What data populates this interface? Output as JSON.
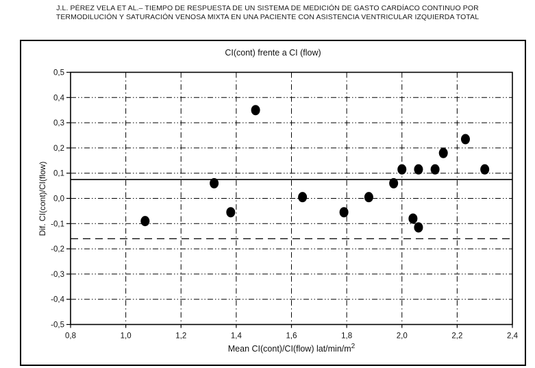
{
  "header": {
    "line1": "J.L. PÉREZ VELA ET AL.– TIEMPO DE RESPUESTA DE UN SISTEMA DE MEDICIÓN DE GASTO CARDÍACO CONTINUO POR",
    "line2": "TERMODILUCIÓN Y SATURACIÓN VENOSA MIXTA EN UNA PACIENTE CON ASISTENCIA VENTRICULAR IZQUIERDA TOTAL"
  },
  "chart_data": {
    "type": "scatter",
    "title": "CI(cont) frente a CI (flow)",
    "xlabel": "Mean CI(cont)/CI(flow)  lat/min/m",
    "xlabel_superscript": "2",
    "ylabel": "Dif. CI(cont)/CI(flow)",
    "xlim": [
      0.8,
      2.4
    ],
    "ylim": [
      -0.5,
      0.5
    ],
    "grid": {
      "style": "dash-dot",
      "x_step": 0.2,
      "y_step": 0.1
    },
    "legend": "none",
    "marker_color": "#000000",
    "x_ticks": [
      {
        "v": 0.8,
        "label": "0,8"
      },
      {
        "v": 1.0,
        "label": "1,0"
      },
      {
        "v": 1.2,
        "label": "1,2"
      },
      {
        "v": 1.4,
        "label": "1,4"
      },
      {
        "v": 1.6,
        "label": "1,6"
      },
      {
        "v": 1.8,
        "label": "1,8"
      },
      {
        "v": 2.0,
        "label": "2,0"
      },
      {
        "v": 2.2,
        "label": "2,2"
      },
      {
        "v": 2.4,
        "label": "2,4"
      }
    ],
    "y_ticks": [
      {
        "v": 0.5,
        "label": "0,5"
      },
      {
        "v": 0.4,
        "label": "0,4"
      },
      {
        "v": 0.3,
        "label": "0,3"
      },
      {
        "v": 0.2,
        "label": "0,2"
      },
      {
        "v": 0.1,
        "label": "0,1"
      },
      {
        "v": 0.0,
        "label": "0,0"
      },
      {
        "v": -0.1,
        "label": "-0,1"
      },
      {
        "v": -0.2,
        "label": "-0,2"
      },
      {
        "v": -0.3,
        "label": "-0,3"
      },
      {
        "v": -0.4,
        "label": "-0,4"
      },
      {
        "v": -0.5,
        "label": "-0,5"
      }
    ],
    "reference_lines": [
      {
        "name": "mean-bias-line",
        "value": 0.075,
        "style": "solid"
      },
      {
        "name": "lower-limit-line",
        "value": -0.16,
        "style": "dashed"
      }
    ],
    "points": [
      {
        "x": 1.07,
        "y": -0.09
      },
      {
        "x": 1.32,
        "y": 0.06
      },
      {
        "x": 1.38,
        "y": -0.055
      },
      {
        "x": 1.47,
        "y": 0.35
      },
      {
        "x": 1.64,
        "y": 0.005
      },
      {
        "x": 1.79,
        "y": -0.055
      },
      {
        "x": 1.88,
        "y": 0.005
      },
      {
        "x": 1.97,
        "y": 0.06
      },
      {
        "x": 2.0,
        "y": 0.115
      },
      {
        "x": 2.04,
        "y": -0.08
      },
      {
        "x": 2.06,
        "y": -0.115
      },
      {
        "x": 2.06,
        "y": 0.115
      },
      {
        "x": 2.12,
        "y": 0.115
      },
      {
        "x": 2.15,
        "y": 0.18
      },
      {
        "x": 2.23,
        "y": 0.235
      },
      {
        "x": 2.3,
        "y": 0.115
      }
    ]
  }
}
